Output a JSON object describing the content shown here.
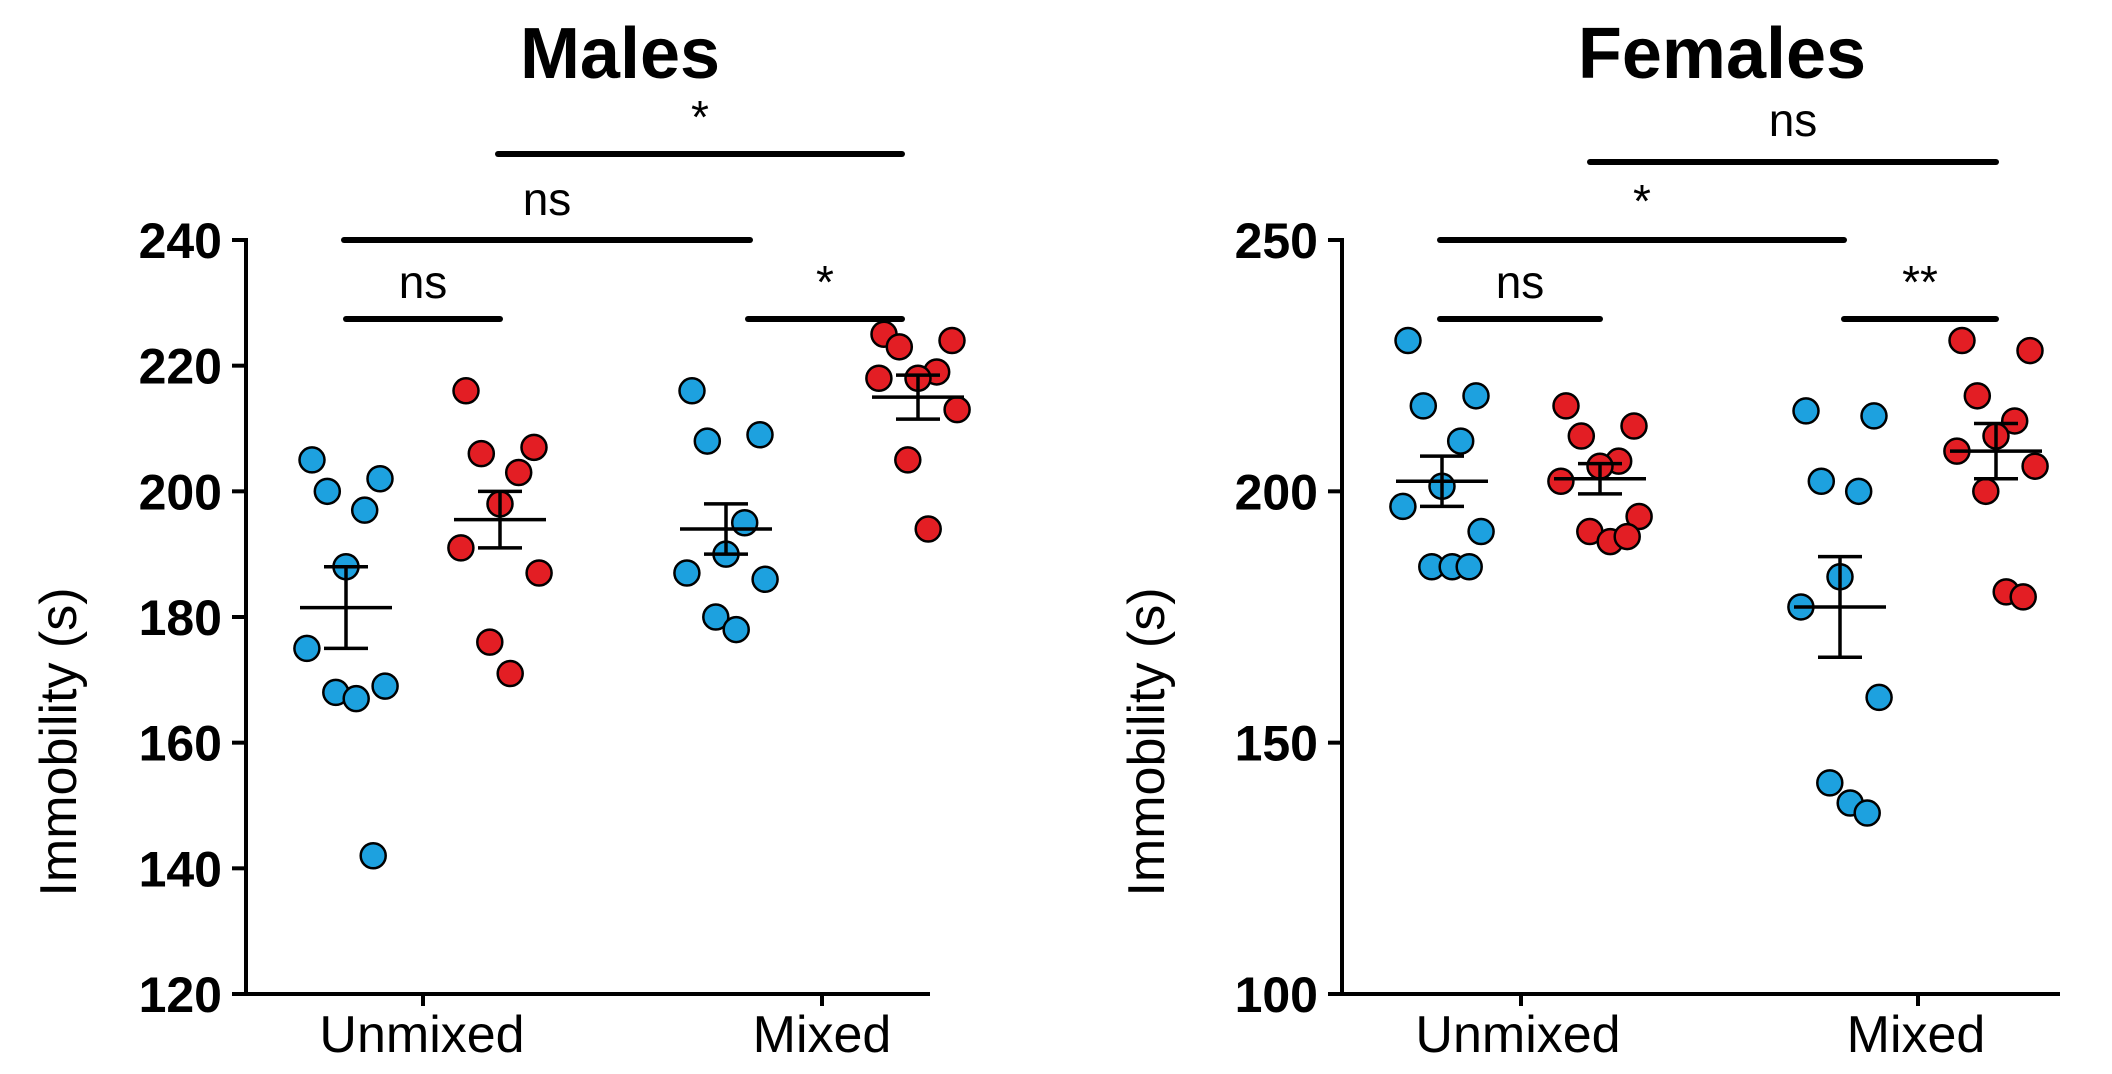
{
  "chart_data": [
    {
      "type": "scatter",
      "title": "Males",
      "ylabel": "Immobility (s)",
      "xlabel": "",
      "categories": [
        "Unmixed",
        "Mixed"
      ],
      "ylim": [
        120,
        240
      ],
      "yticks": [
        120,
        140,
        160,
        180,
        200,
        220,
        240
      ],
      "grid": false,
      "colors": {
        "blue": "#1da1df",
        "red": "#e31e24"
      },
      "series": [
        {
          "category": "Unmixed",
          "color": "blue",
          "mean": 181.5,
          "sem": 6.5,
          "values": [
            205,
            202,
            200,
            197,
            188,
            175,
            169,
            168,
            167,
            142
          ]
        },
        {
          "category": "Unmixed",
          "color": "red",
          "mean": 195.5,
          "sem": 4.5,
          "values": [
            216,
            207,
            206,
            203,
            198,
            191,
            187,
            176,
            171
          ]
        },
        {
          "category": "Mixed",
          "color": "blue",
          "mean": 194,
          "sem": 4,
          "values": [
            216,
            209,
            208,
            195,
            190,
            187,
            186,
            180,
            178
          ]
        },
        {
          "category": "Mixed",
          "color": "red",
          "mean": 215,
          "sem": 3.5,
          "values": [
            225,
            224,
            223,
            219,
            218,
            218,
            213,
            205,
            194
          ]
        }
      ],
      "comparisons": [
        {
          "from": "Unmixed-blue",
          "to": "Unmixed-red",
          "label": "ns"
        },
        {
          "from": "Mixed-blue",
          "to": "Mixed-red",
          "label": "*"
        },
        {
          "from": "Unmixed-blue",
          "to": "Mixed-blue",
          "label": "ns"
        },
        {
          "from": "Unmixed-red",
          "to": "Mixed-red",
          "label": "*"
        }
      ]
    },
    {
      "type": "scatter",
      "title": "Females",
      "ylabel": "Immobility (s)",
      "xlabel": "",
      "categories": [
        "Unmixed",
        "Mixed"
      ],
      "ylim": [
        100,
        250
      ],
      "yticks": [
        100,
        150,
        200,
        250
      ],
      "grid": false,
      "colors": {
        "blue": "#1da1df",
        "red": "#e31e24"
      },
      "series": [
        {
          "category": "Unmixed",
          "color": "blue",
          "mean": 202,
          "sem": 5,
          "values": [
            230,
            219,
            217,
            210,
            201,
            197,
            192,
            185,
            185,
            185
          ]
        },
        {
          "category": "Unmixed",
          "color": "red",
          "mean": 202.5,
          "sem": 3,
          "values": [
            217,
            213,
            211,
            206,
            205,
            202,
            195,
            192,
            190,
            191
          ]
        },
        {
          "category": "Mixed",
          "color": "blue",
          "mean": 177,
          "sem": 10,
          "values": [
            216,
            215,
            202,
            200,
            183,
            177,
            159,
            142,
            138,
            136
          ]
        },
        {
          "category": "Mixed",
          "color": "red",
          "mean": 208,
          "sem": 5.5,
          "values": [
            230,
            228,
            219,
            214,
            211,
            208,
            205,
            200,
            180,
            179
          ]
        }
      ],
      "comparisons": [
        {
          "from": "Unmixed-blue",
          "to": "Unmixed-red",
          "label": "ns"
        },
        {
          "from": "Mixed-blue",
          "to": "Mixed-red",
          "label": "**"
        },
        {
          "from": "Unmixed-blue",
          "to": "Mixed-blue",
          "label": "*"
        },
        {
          "from": "Unmixed-red",
          "to": "Mixed-red",
          "label": "ns"
        }
      ]
    }
  ]
}
